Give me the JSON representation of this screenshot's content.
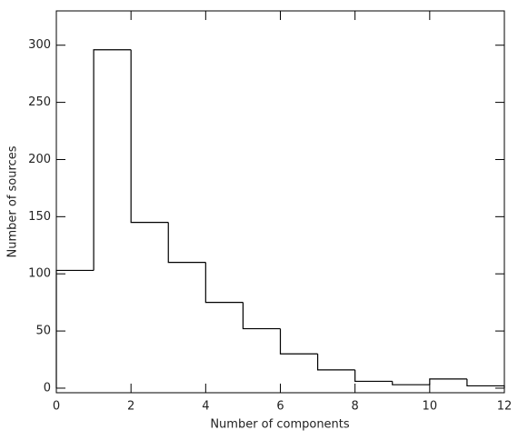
{
  "chart_data": {
    "type": "histogram",
    "x_label": "Number of components",
    "y_label": "Number of sources",
    "bins": [
      0,
      1,
      2,
      3,
      4,
      5,
      6,
      7,
      8,
      9,
      10,
      11,
      12
    ],
    "values": [
      103,
      296,
      145,
      110,
      75,
      52,
      30,
      16,
      6,
      3,
      8,
      2
    ],
    "color": "#000000",
    "xlim": [
      0,
      12
    ],
    "xticks": [
      0,
      2,
      4,
      6,
      8,
      10,
      12
    ],
    "ylim": [
      -4,
      330
    ],
    "yticks": [
      0,
      50,
      100,
      150,
      200,
      250,
      300
    ]
  }
}
